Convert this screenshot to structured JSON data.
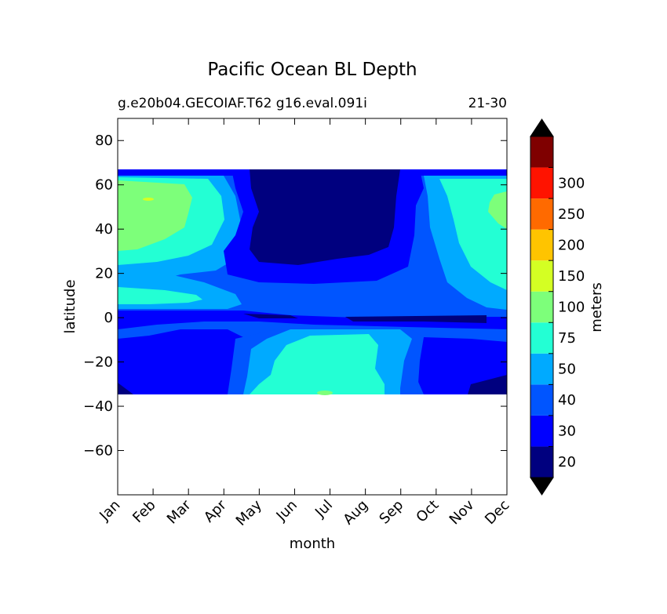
{
  "chart_data": {
    "type": "contour",
    "title": "Pacific Ocean BL Depth",
    "subtitle_left": "g.e20b04.GECOIAF.T62 g16.eval.091i",
    "subtitle_right": "21-30",
    "xlabel": "month",
    "ylabel": "latitude",
    "x_tick_labels": [
      "Jan",
      "Feb",
      "Mar",
      "Apr",
      "May",
      "Jun",
      "Jul",
      "Aug",
      "Sep",
      "Oct",
      "Nov",
      "Dec"
    ],
    "ylim": [
      -80,
      90
    ],
    "y_ticks": [
      80,
      60,
      40,
      20,
      0,
      -20,
      -40,
      -60
    ],
    "y_tick_labels": [
      "80",
      "60",
      "40",
      "20",
      "0",
      "−20",
      "−40",
      "−60"
    ],
    "data_lat_range": [
      -34,
      67
    ],
    "colorbar": {
      "label": "meters",
      "levels": [
        20,
        30,
        40,
        50,
        75,
        100,
        150,
        200,
        250,
        300
      ],
      "tick_labels": [
        "20",
        "30",
        "40",
        "50",
        "75",
        "100",
        "150",
        "200",
        "250",
        "300"
      ],
      "colors": [
        "#00007f",
        "#0000ff",
        "#0055ff",
        "#00aaff",
        "#23ffd4",
        "#7dff7a",
        "#d4ff23",
        "#ffc400",
        "#ff6a00",
        "#ff1300",
        "#7f0000"
      ],
      "extend": "both",
      "extend_low_color": "#000000",
      "extend_high_color": "#000000"
    },
    "regions_description_values": {
      "northern_summer_shallow_band": {
        "months": [
          "May",
          "Jun",
          "Jul",
          "Aug",
          "Sep"
        ],
        "lat": [
          25,
          67
        ],
        "value_class": "<20"
      },
      "northern_winter_deep": {
        "months": [
          "Jan",
          "Feb",
          "Mar",
          "Dec"
        ],
        "lat": [
          30,
          67
        ],
        "value_class": "50-100"
      },
      "southern_winter_deep": {
        "months": [
          "Jun",
          "Jul",
          "Aug"
        ],
        "lat": [
          -34,
          -5
        ],
        "value_class": "50-75"
      },
      "equatorial_band": {
        "months": [
          "Jan",
          "Dec"
        ],
        "lat": [
          -5,
          5
        ],
        "value_class": "20-30"
      }
    }
  }
}
